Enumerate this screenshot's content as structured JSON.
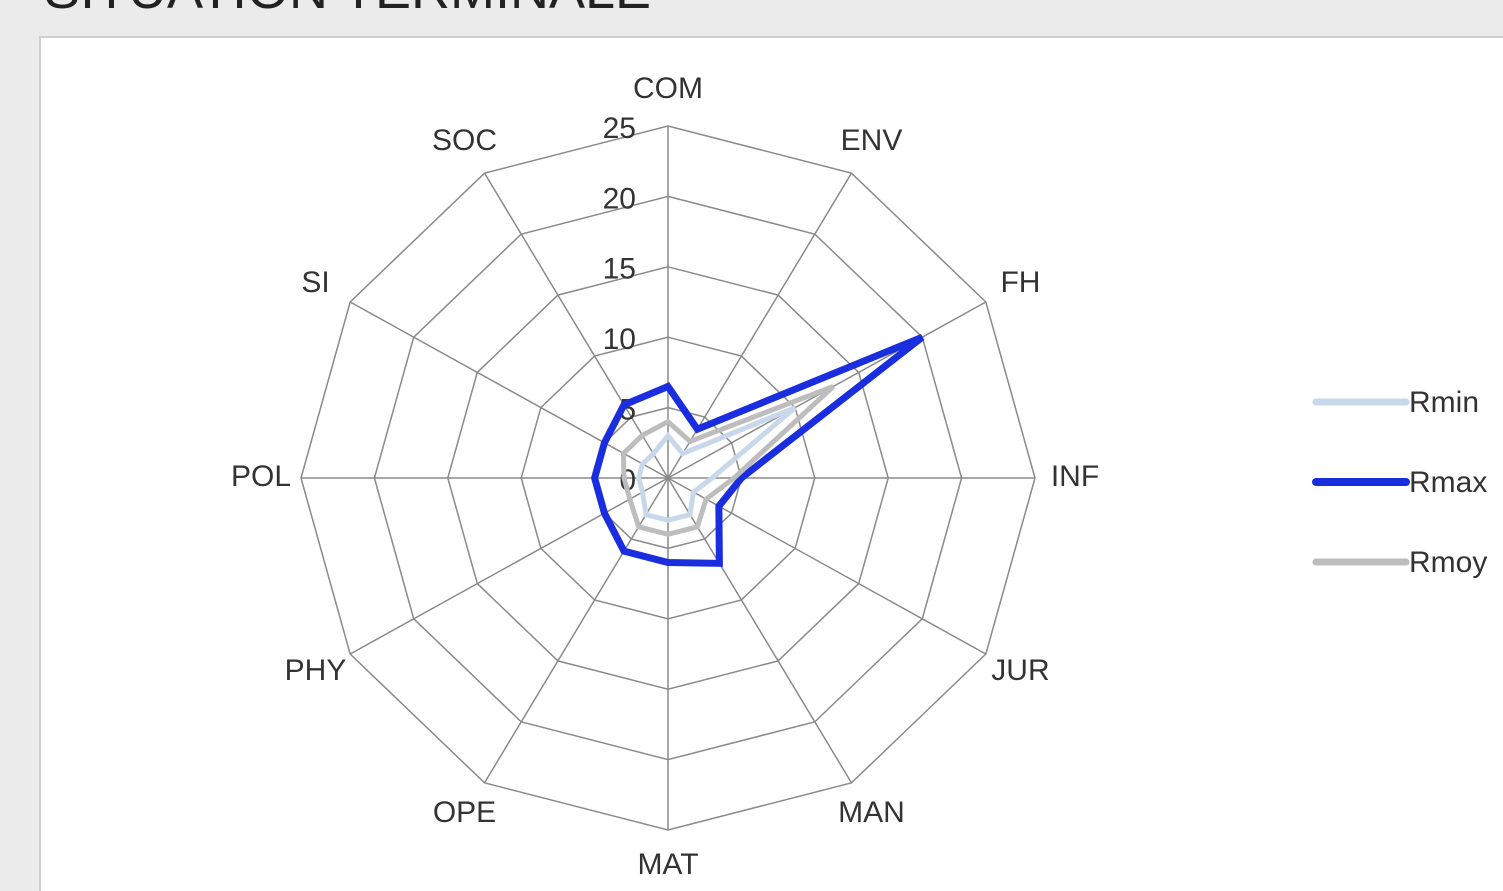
{
  "chart_data": {
    "type": "radar",
    "title": "SITUATION TERMINALE",
    "categories": [
      "COM",
      "ENV",
      "FH",
      "INF",
      "JUR",
      "MAN",
      "MAT",
      "OPE",
      "PHY",
      "POL",
      "SI",
      "SOC"
    ],
    "rlim": [
      0,
      25
    ],
    "rticks": [
      0,
      5,
      10,
      15,
      20,
      25
    ],
    "grid": true,
    "legend": "right",
    "series": [
      {
        "name": "Rmax",
        "color": "#1a2ee0",
        "values": [
          6.5,
          4,
          20,
          5,
          4,
          7,
          6,
          6,
          5,
          5,
          5,
          6
        ]
      },
      {
        "name": "Rmoy",
        "color": "#bdbdbd",
        "values": [
          4,
          3,
          13,
          4.5,
          3,
          4,
          4,
          4,
          3,
          3,
          3.5,
          3.5
        ]
      },
      {
        "name": "Rmin",
        "color": "#c8d7ea",
        "values": [
          3,
          2,
          10,
          3,
          2,
          3,
          3,
          3,
          2,
          2,
          2,
          2
        ]
      }
    ]
  }
}
